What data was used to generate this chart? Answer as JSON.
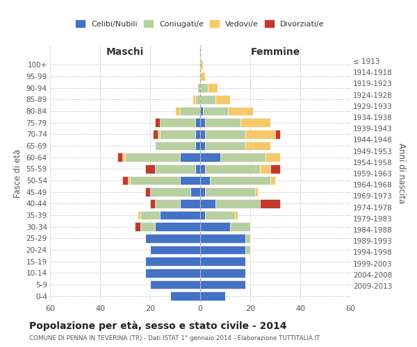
{
  "age_groups": [
    "0-4",
    "5-9",
    "10-14",
    "15-19",
    "20-24",
    "25-29",
    "30-34",
    "35-39",
    "40-44",
    "45-49",
    "50-54",
    "55-59",
    "60-64",
    "65-69",
    "70-74",
    "75-79",
    "80-84",
    "85-89",
    "90-94",
    "95-99",
    "100+"
  ],
  "birth_years": [
    "2009-2013",
    "2004-2008",
    "1999-2003",
    "1994-1998",
    "1989-1993",
    "1984-1988",
    "1979-1983",
    "1974-1978",
    "1969-1973",
    "1964-1968",
    "1959-1963",
    "1954-1958",
    "1949-1953",
    "1944-1948",
    "1939-1943",
    "1934-1938",
    "1929-1933",
    "1924-1928",
    "1919-1923",
    "1914-1918",
    "≤ 1913"
  ],
  "male": {
    "celibi": [
      12,
      20,
      22,
      22,
      20,
      22,
      18,
      16,
      8,
      4,
      8,
      2,
      8,
      2,
      2,
      2,
      0,
      0,
      0,
      0,
      0
    ],
    "coniugati": [
      0,
      0,
      0,
      0,
      0,
      0,
      6,
      8,
      10,
      16,
      20,
      16,
      22,
      16,
      14,
      14,
      8,
      2,
      1,
      0,
      0
    ],
    "vedovi": [
      0,
      0,
      0,
      0,
      0,
      0,
      0,
      1,
      0,
      0,
      1,
      0,
      1,
      0,
      1,
      0,
      2,
      1,
      0,
      0,
      0
    ],
    "divorziati": [
      0,
      0,
      0,
      0,
      0,
      0,
      2,
      0,
      2,
      2,
      2,
      4,
      2,
      0,
      2,
      2,
      0,
      0,
      0,
      0,
      0
    ]
  },
  "female": {
    "nubili": [
      10,
      18,
      18,
      18,
      18,
      18,
      12,
      2,
      6,
      2,
      4,
      2,
      8,
      2,
      2,
      2,
      1,
      0,
      0,
      0,
      0
    ],
    "coniugate": [
      0,
      0,
      0,
      0,
      2,
      2,
      8,
      12,
      18,
      20,
      24,
      22,
      18,
      16,
      16,
      14,
      10,
      6,
      3,
      0,
      0
    ],
    "vedove": [
      0,
      0,
      0,
      0,
      0,
      0,
      0,
      1,
      0,
      1,
      2,
      4,
      6,
      10,
      12,
      12,
      10,
      6,
      4,
      2,
      1
    ],
    "divorziate": [
      0,
      0,
      0,
      0,
      0,
      0,
      0,
      0,
      8,
      0,
      0,
      4,
      0,
      0,
      2,
      0,
      0,
      0,
      0,
      0,
      0
    ]
  },
  "colors": {
    "celibi": "#4472c4",
    "coniugati": "#b8cfa0",
    "vedovi": "#f5c96a",
    "divorziati": "#c0392b"
  },
  "title": "Popolazione per età, sesso e stato civile - 2014",
  "subtitle": "COMUNE DI PENNA IN TEVERINA (TR) - Dati ISTAT 1° gennaio 2014 - Elaborazione TUTTITALIA.IT",
  "xlabel_left": "Maschi",
  "xlabel_right": "Femmine",
  "ylabel_left": "Fasce di età",
  "ylabel_right": "Anni di nascita",
  "xlim": 60,
  "legend_labels": [
    "Celibi/Nubili",
    "Coniugati/e",
    "Vedovi/e",
    "Divorziati/e"
  ],
  "background_color": "#ffffff",
  "bar_height": 0.75
}
